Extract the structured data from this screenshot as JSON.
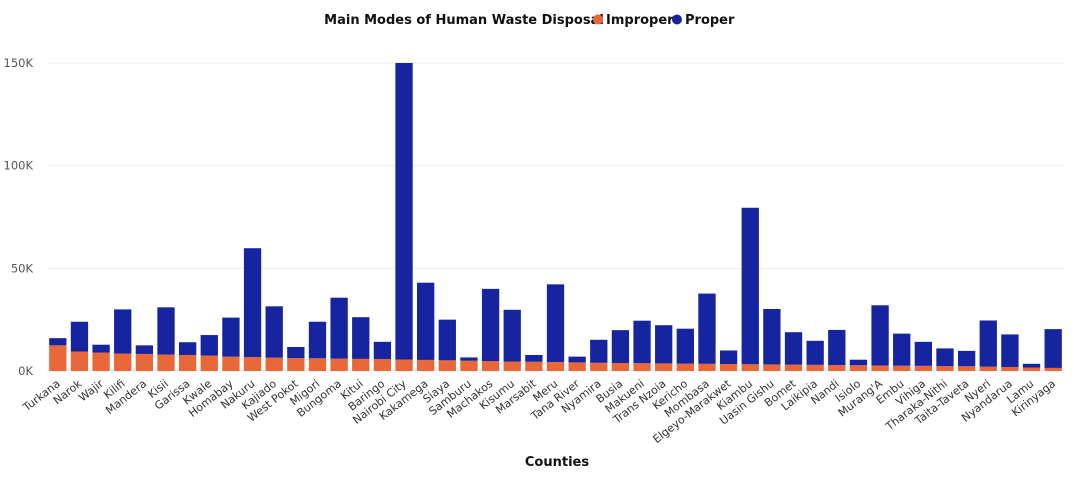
{
  "chart_data": {
    "type": "bar",
    "stacked": true,
    "title": "Main Modes of Human Waste Disposal",
    "xlabel": "Counties",
    "ylabel": "",
    "ylim": [
      0,
      150000
    ],
    "yticks": [
      0,
      50000,
      100000,
      150000
    ],
    "ytick_labels": [
      "0K",
      "50K",
      "100K",
      "150K"
    ],
    "grid": true,
    "legend_position": "top",
    "colors": {
      "Improper": "#E8683A",
      "Proper": "#1624A0"
    },
    "categories": [
      "Turkana",
      "Narok",
      "Wajir",
      "Kilifi",
      "Mandera",
      "Kisii",
      "Garissa",
      "Kwale",
      "Homabay",
      "Nakuru",
      "Kajiado",
      "West Pokot",
      "Migori",
      "Bungoma",
      "Kitui",
      "Baringo",
      "Nairobi City",
      "Kakamega",
      "Siaya",
      "Samburu",
      "Machakos",
      "Kisumu",
      "Marsabit",
      "Meru",
      "Tana River",
      "Nyamira",
      "Busia",
      "Makueni",
      "Trans Nzoia",
      "Kericho",
      "Mombasa",
      "Elgeyo-Marakwet",
      "Kiambu",
      "Uasin Gishu",
      "Bomet",
      "Laikipia",
      "Nandi",
      "Isiolo",
      "Murang'A",
      "Embu",
      "Vihiga",
      "Tharaka-Nithi",
      "Taita-Taveta",
      "Nyeri",
      "Nyandarua",
      "Lamu",
      "Kirinyaga"
    ],
    "series": [
      {
        "name": "Improper",
        "values": [
          12500,
          9500,
          9000,
          8500,
          8300,
          8000,
          7800,
          7500,
          7000,
          6800,
          6500,
          6300,
          6200,
          6000,
          5900,
          5800,
          5600,
          5400,
          5200,
          5000,
          4800,
          4600,
          4500,
          4400,
          4200,
          4000,
          3900,
          3800,
          3700,
          3600,
          3500,
          3400,
          3300,
          3200,
          3100,
          3000,
          2900,
          2800,
          2700,
          2600,
          2500,
          2400,
          2300,
          2100,
          1900,
          1700,
          1500
        ]
      },
      {
        "name": "Proper",
        "values": [
          3500,
          14500,
          3800,
          21500,
          4200,
          23000,
          6200,
          10000,
          19000,
          53000,
          25000,
          5400,
          17800,
          29700,
          20300,
          8400,
          144400,
          37600,
          19800,
          1600,
          35200,
          25200,
          3300,
          37800,
          2800,
          11200,
          16000,
          20700,
          18600,
          17000,
          34200,
          6600,
          76200,
          27000,
          15800,
          11700,
          17100,
          2700,
          29300,
          15600,
          11700,
          8600,
          7500,
          22500,
          15900,
          1800,
          18900
        ]
      }
    ]
  }
}
